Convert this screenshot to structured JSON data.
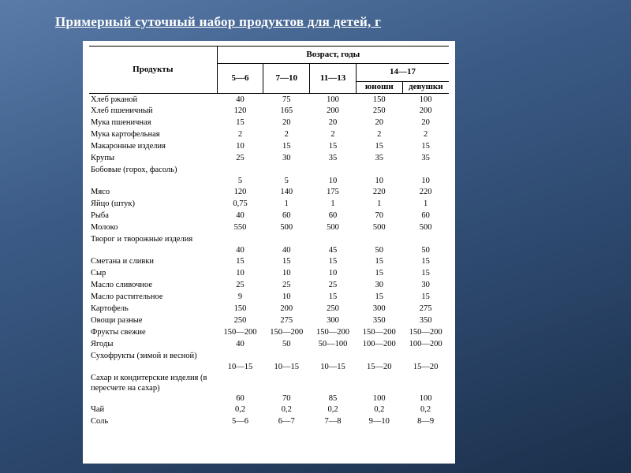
{
  "title": "Примерный суточный набор продуктов для детей, г",
  "header": {
    "products": "Продукты",
    "age_group": "Возраст, годы",
    "c1": "5—6",
    "c2": "7—10",
    "c3": "11—13",
    "c4_group": "14—17",
    "c4a": "юноши",
    "c4b": "девушки"
  },
  "rows": [
    {
      "p": "Хлеб ржаной",
      "v": [
        "40",
        "75",
        "100",
        "150",
        "100"
      ]
    },
    {
      "p": "Хлеб пшеничный",
      "v": [
        "120",
        "165",
        "200",
        "250",
        "200"
      ]
    },
    {
      "p": "Мука пшеничная",
      "v": [
        "15",
        "20",
        "20",
        "20",
        "20"
      ]
    },
    {
      "p": "Мука картофельная",
      "v": [
        "2",
        "2",
        "2",
        "2",
        "2"
      ]
    },
    {
      "p": "Макаронные изделия",
      "v": [
        "10",
        "15",
        "15",
        "15",
        "15"
      ]
    },
    {
      "p": "Крупы",
      "v": [
        "25",
        "30",
        "35",
        "35",
        "35"
      ]
    },
    {
      "p": "Бобовые (горох, фасоль)",
      "v": [
        "5",
        "5",
        "10",
        "10",
        "10"
      ]
    },
    {
      "p": "Мясо",
      "v": [
        "120",
        "140",
        "175",
        "220",
        "220"
      ]
    },
    {
      "p": "Яйцо (штук)",
      "v": [
        "0,75",
        "1",
        "1",
        "1",
        "1"
      ]
    },
    {
      "p": "Рыба",
      "v": [
        "40",
        "60",
        "60",
        "70",
        "60"
      ]
    },
    {
      "p": "Молоко",
      "v": [
        "550",
        "500",
        "500",
        "500",
        "500"
      ]
    },
    {
      "p": "Творог и творожные изделия",
      "v": [
        "40",
        "40",
        "45",
        "50",
        "50"
      ]
    },
    {
      "p": "Сметана и сливки",
      "v": [
        "15",
        "15",
        "15",
        "15",
        "15"
      ]
    },
    {
      "p": "Сыр",
      "v": [
        "10",
        "10",
        "10",
        "15",
        "15"
      ]
    },
    {
      "p": "Масло сливочное",
      "v": [
        "25",
        "25",
        "25",
        "30",
        "30"
      ]
    },
    {
      "p": "Масло растительное",
      "v": [
        "9",
        "10",
        "15",
        "15",
        "15"
      ]
    },
    {
      "p": "Картофель",
      "v": [
        "150",
        "200",
        "250",
        "300",
        "275"
      ]
    },
    {
      "p": "Овощи разные",
      "v": [
        "250",
        "275",
        "300",
        "350",
        "350"
      ]
    },
    {
      "p": "Фрукты свежие",
      "v": [
        "150—200",
        "150—200",
        "150—200",
        "150—200",
        "150—200"
      ]
    },
    {
      "p": "Ягоды",
      "v": [
        "40",
        "50",
        "50—100",
        "100—200",
        "100—200"
      ]
    },
    {
      "p": "Сухофрукты (зимой и весной)",
      "v": [
        "10—15",
        "10—15",
        "10—15",
        "15—20",
        "15—20"
      ]
    },
    {
      "p": "Сахар и кондитер­ские изделия (в пересчете на сахар)",
      "v": [
        "60",
        "70",
        "85",
        "100",
        "100"
      ]
    },
    {
      "p": "Чай",
      "v": [
        "0,2",
        "0,2",
        "0,2",
        "0,2",
        "0,2"
      ]
    },
    {
      "p": "Соль",
      "v": [
        "5—6",
        "6—7",
        "7—8",
        "9—10",
        "8—9"
      ]
    }
  ]
}
